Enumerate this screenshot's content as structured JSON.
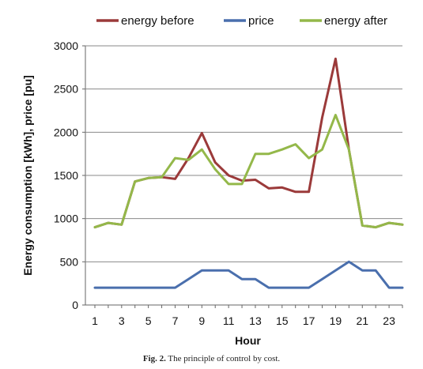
{
  "caption": {
    "label": "Fig. 2.",
    "text": "The principle of control by cost."
  },
  "chart_data": {
    "type": "line",
    "title": "",
    "xlabel": "Hour",
    "ylabel": "Energy consumption [kWh], price [pu]",
    "x": [
      1,
      2,
      3,
      4,
      5,
      6,
      7,
      8,
      9,
      10,
      11,
      12,
      13,
      14,
      15,
      16,
      17,
      18,
      19,
      20,
      21,
      22,
      23,
      24
    ],
    "xticks": [
      1,
      3,
      5,
      7,
      9,
      11,
      13,
      15,
      17,
      19,
      21,
      23
    ],
    "xlim": [
      1,
      24
    ],
    "ylim": [
      0,
      3000
    ],
    "yticks": [
      0,
      500,
      1000,
      1500,
      2000,
      2500,
      3000
    ],
    "grid": {
      "x": false,
      "y": true
    },
    "legend_position": "top",
    "series": [
      {
        "name": "energy before",
        "color": "#9b3a3a",
        "values": [
          900,
          950,
          930,
          1430,
          1470,
          1480,
          1460,
          1700,
          1990,
          1650,
          1500,
          1440,
          1450,
          1350,
          1360,
          1310,
          1310,
          2170,
          2850,
          1800,
          920,
          900,
          950,
          930
        ]
      },
      {
        "name": "price",
        "color": "#4a6fad",
        "values": [
          200,
          200,
          200,
          200,
          200,
          200,
          200,
          300,
          400,
          400,
          400,
          300,
          300,
          200,
          200,
          200,
          200,
          300,
          400,
          500,
          400,
          400,
          200,
          200
        ]
      },
      {
        "name": "energy after",
        "color": "#94b84a",
        "values": [
          900,
          950,
          930,
          1430,
          1470,
          1480,
          1700,
          1680,
          1800,
          1570,
          1400,
          1400,
          1750,
          1750,
          1800,
          1860,
          1700,
          1800,
          2200,
          1800,
          920,
          900,
          950,
          930
        ]
      }
    ]
  }
}
